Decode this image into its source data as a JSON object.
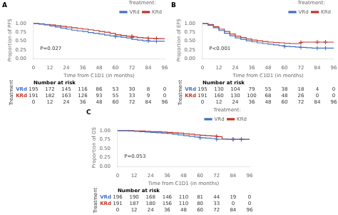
{
  "chart_data": [
    {
      "type": "line",
      "title": "A",
      "xlabel": "Time from C1D1 (in months)",
      "ylabel": "Proportion of PFS",
      "xlim": [
        0,
        96
      ],
      "ylim": [
        0,
        1.05
      ],
      "xticks": [
        0,
        12,
        24,
        36,
        48,
        60,
        72,
        84,
        96
      ],
      "yticks": [
        {
          "value": 0.0,
          "label": "0.00"
        },
        {
          "value": 0.25,
          "label": "0.25"
        },
        {
          "value": 0.5,
          "label": "0.50"
        },
        {
          "value": 0.75,
          "label": "0.75"
        },
        {
          "value": 1.0,
          "label": "1.00"
        }
      ],
      "grid": false,
      "legend": "upper right",
      "legend_title": "Treatment:",
      "line_style": "steps",
      "annotations": [
        "P=0.027"
      ],
      "risk_header": "Number at risk",
      "risk_label": "Treatment",
      "series": [
        {
          "name": "VRd",
          "color": "#4472C4",
          "x": [
            0,
            4,
            8,
            12,
            16,
            20,
            24,
            28,
            32,
            36,
            40,
            44,
            48,
            52,
            56,
            60,
            64,
            68,
            72,
            76,
            80,
            84,
            88,
            92,
            96
          ],
          "values": [
            1.0,
            0.98,
            0.96,
            0.93,
            0.9,
            0.87,
            0.84,
            0.81,
            0.79,
            0.77,
            0.74,
            0.72,
            0.7,
            0.67,
            0.65,
            0.63,
            0.61,
            0.59,
            0.55,
            0.53,
            0.51,
            0.5,
            0.5,
            0.5,
            0.5
          ],
          "censor_x": [
            60,
            72,
            84,
            90
          ],
          "censor_y": [
            0.63,
            0.6,
            0.51,
            0.5
          ],
          "at_risk": [
            195,
            172,
            145,
            116,
            86,
            53,
            30,
            8,
            0
          ]
        },
        {
          "name": "KRd",
          "color": "#C0392B",
          "x": [
            0,
            4,
            8,
            12,
            16,
            20,
            24,
            28,
            32,
            36,
            40,
            44,
            48,
            52,
            56,
            60,
            64,
            68,
            72,
            76,
            80,
            84,
            88,
            92,
            96
          ],
          "values": [
            1.0,
            0.99,
            0.97,
            0.96,
            0.94,
            0.92,
            0.9,
            0.88,
            0.86,
            0.84,
            0.82,
            0.8,
            0.77,
            0.75,
            0.72,
            0.68,
            0.66,
            0.64,
            0.62,
            0.6,
            0.59,
            0.58,
            0.57,
            0.57,
            0.56
          ],
          "censor_x": [
            72,
            84,
            90
          ],
          "censor_y": [
            0.64,
            0.58,
            0.57
          ],
          "at_risk": [
            191,
            182,
            163,
            126,
            93,
            55,
            33,
            9,
            0
          ]
        }
      ]
    },
    {
      "type": "line",
      "title": "B",
      "xlabel": "Time from C1D1 (in months)",
      "ylabel": "Proportion of EFS",
      "xlim": [
        0,
        96
      ],
      "ylim": [
        0,
        1.05
      ],
      "xticks": [
        0,
        12,
        24,
        36,
        48,
        60,
        72,
        84,
        96
      ],
      "yticks": [
        {
          "value": 0.0,
          "label": "0.00"
        },
        {
          "value": 0.25,
          "label": "0.25"
        },
        {
          "value": 0.5,
          "label": "0.50"
        },
        {
          "value": 0.75,
          "label": "0.75"
        },
        {
          "value": 1.0,
          "label": "1.00"
        }
      ],
      "grid": false,
      "legend": "upper right",
      "legend_title": "Treatment:",
      "line_style": "steps",
      "annotations": [
        "P<0.001"
      ],
      "risk_header": "Number at risk",
      "risk_label": "Treatment",
      "series": [
        {
          "name": "VRd",
          "color": "#4472C4",
          "x": [
            0,
            4,
            8,
            12,
            16,
            20,
            24,
            28,
            32,
            36,
            40,
            44,
            48,
            52,
            56,
            60,
            64,
            68,
            72,
            76,
            80,
            84,
            88,
            92,
            96
          ],
          "values": [
            1.0,
            0.95,
            0.88,
            0.8,
            0.72,
            0.65,
            0.59,
            0.55,
            0.51,
            0.48,
            0.45,
            0.43,
            0.41,
            0.39,
            0.37,
            0.35,
            0.34,
            0.33,
            0.32,
            0.31,
            0.3,
            0.3,
            0.3,
            0.3,
            0.3
          ],
          "censor_x": [
            60,
            72,
            84,
            90
          ],
          "censor_y": [
            0.35,
            0.32,
            0.3,
            0.3
          ],
          "at_risk": [
            195,
            130,
            104,
            79,
            55,
            38,
            18,
            4,
            0
          ]
        },
        {
          "name": "KRd",
          "color": "#C0392B",
          "x": [
            0,
            4,
            8,
            12,
            16,
            20,
            24,
            28,
            32,
            36,
            40,
            44,
            48,
            52,
            56,
            60,
            64,
            68,
            72,
            76,
            80,
            84,
            88,
            92,
            96
          ],
          "values": [
            1.0,
            0.97,
            0.91,
            0.84,
            0.77,
            0.7,
            0.64,
            0.6,
            0.56,
            0.53,
            0.51,
            0.49,
            0.47,
            0.46,
            0.45,
            0.44,
            0.43,
            0.43,
            0.47,
            0.47,
            0.47,
            0.47,
            0.47,
            0.47,
            0.47
          ],
          "censor_x": [
            72,
            84,
            90
          ],
          "censor_y": [
            0.46,
            0.47,
            0.47
          ],
          "at_risk": [
            191,
            160,
            130,
            100,
            68,
            48,
            26,
            0,
            0
          ]
        }
      ]
    },
    {
      "type": "line",
      "title": "C",
      "xlabel": "Time from C1D1 (in months)",
      "ylabel": "Proportion of OS",
      "xlim": [
        0,
        96
      ],
      "ylim": [
        0,
        1.05
      ],
      "xticks": [
        0,
        12,
        24,
        36,
        48,
        60,
        72,
        84,
        96
      ],
      "yticks": [
        {
          "value": 0.0,
          "label": "0.00"
        },
        {
          "value": 0.25,
          "label": "0.25"
        },
        {
          "value": 0.5,
          "label": "0.50"
        },
        {
          "value": 0.75,
          "label": "0.75"
        },
        {
          "value": 1.0,
          "label": "1.00"
        }
      ],
      "grid": false,
      "legend": "upper right",
      "legend_title": "Treatment:",
      "line_style": "steps",
      "annotations": [
        "P=0.053"
      ],
      "risk_header": "Number at risk",
      "risk_label": "Treatment",
      "series": [
        {
          "name": "VRd",
          "color": "#4472C4",
          "x": [
            0,
            4,
            8,
            12,
            16,
            20,
            24,
            28,
            32,
            36,
            40,
            44,
            48,
            52,
            56,
            60,
            64,
            68,
            72,
            76,
            80,
            84,
            88,
            92,
            96
          ],
          "values": [
            1.0,
            1.0,
            0.99,
            0.98,
            0.97,
            0.96,
            0.95,
            0.94,
            0.93,
            0.92,
            0.9,
            0.88,
            0.86,
            0.84,
            0.82,
            0.8,
            0.79,
            0.78,
            0.76,
            0.76,
            0.76,
            0.76,
            0.76,
            0.76,
            0.76
          ],
          "censor_x": [
            60,
            72,
            84,
            90
          ],
          "censor_y": [
            0.8,
            0.76,
            0.76,
            0.76
          ],
          "at_risk": [
            196,
            190,
            168,
            146,
            110,
            81,
            44,
            19,
            0
          ]
        },
        {
          "name": "KRd",
          "color": "#C0392B",
          "x": [
            0,
            4,
            8,
            12,
            16,
            20,
            24,
            28,
            32,
            36,
            40,
            44,
            48,
            52,
            56,
            60,
            64,
            68,
            72,
            76,
            80,
            84,
            88,
            92,
            96
          ],
          "values": [
            1.0,
            1.0,
            1.0,
            0.99,
            0.99,
            0.98,
            0.97,
            0.97,
            0.96,
            0.95,
            0.94,
            0.93,
            0.91,
            0.9,
            0.88,
            0.87,
            0.86,
            0.85,
            0.83,
            0.77,
            0.76,
            0.76,
            0.76,
            0.76,
            0.76
          ],
          "censor_x": [
            72,
            84,
            90
          ],
          "censor_y": [
            0.84,
            0.76,
            0.76
          ],
          "at_risk": [
            191,
            187,
            180,
            156,
            110,
            80,
            33,
            0,
            0
          ]
        }
      ]
    }
  ]
}
